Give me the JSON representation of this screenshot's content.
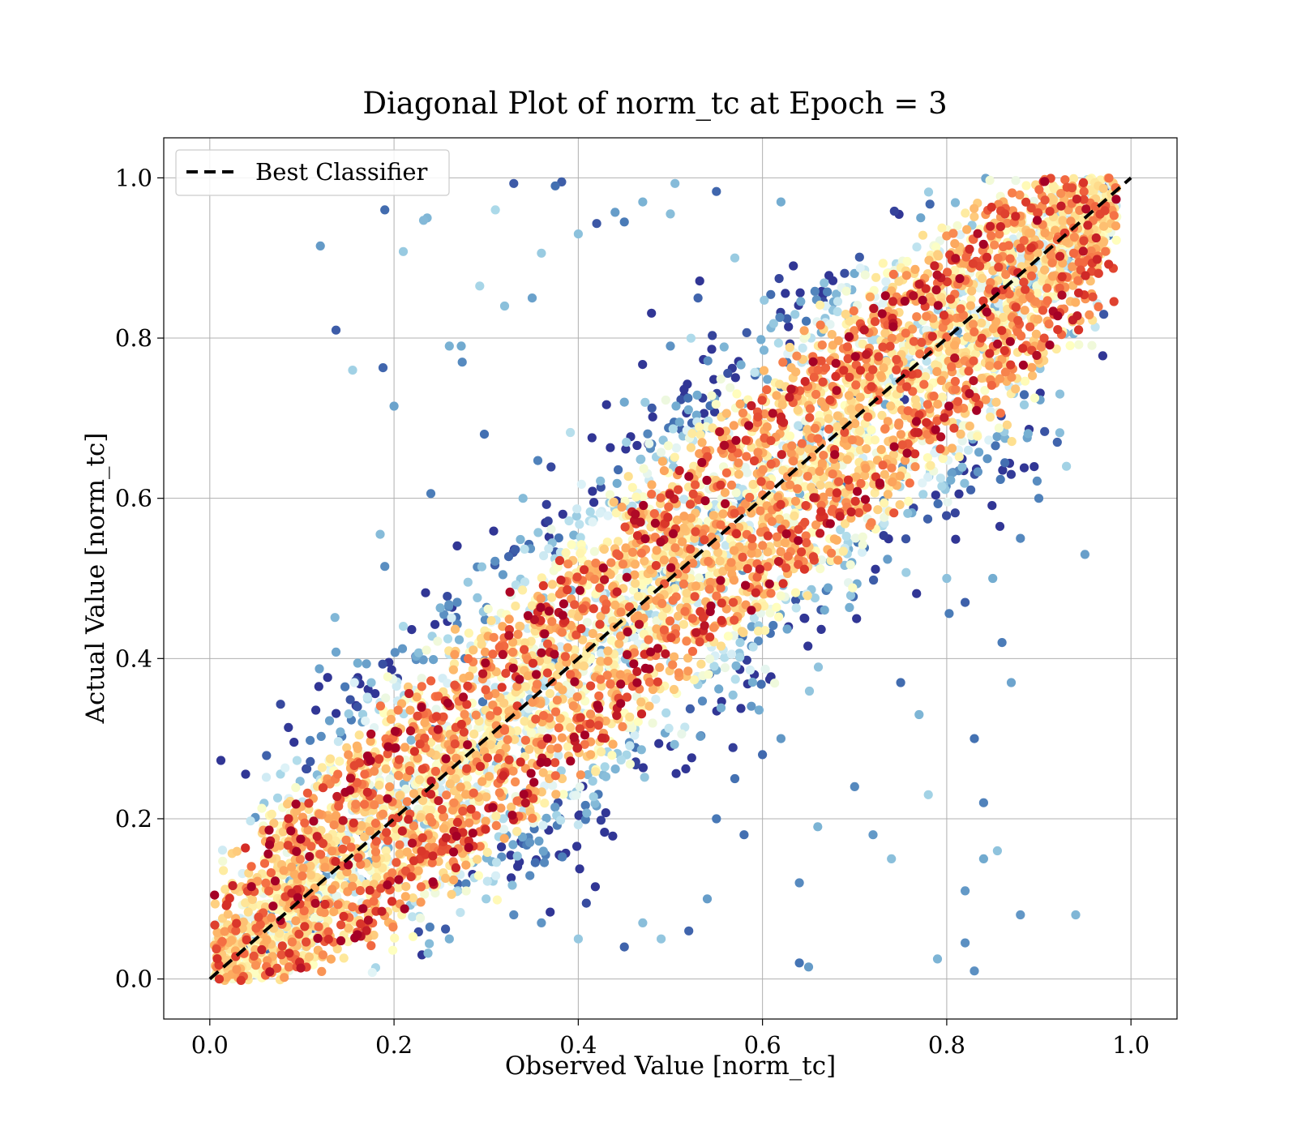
{
  "chart_data": {
    "type": "scatter",
    "title": "Diagonal Plot of norm_tc at Epoch = 3",
    "xlabel": "Observed Value [norm_tc]",
    "ylabel": "Actual Value [norm_tc]",
    "xlim": [
      -0.05,
      1.05
    ],
    "ylim": [
      -0.05,
      1.05
    ],
    "xticks": [
      "0.0",
      "0.2",
      "0.4",
      "0.6",
      "0.8",
      "1.0"
    ],
    "yticks": [
      "0.0",
      "0.2",
      "0.4",
      "0.6",
      "0.8",
      "1.0"
    ],
    "tick_values": [
      0.0,
      0.2,
      0.4,
      0.6,
      0.8,
      1.0
    ],
    "grid": true,
    "legend": {
      "placement": "top-left",
      "entries": [
        "Best Classifier"
      ]
    },
    "reference_line": {
      "name": "Best Classifier",
      "style": "dashed",
      "color": "#000000",
      "x": [
        0.0,
        1.0
      ],
      "y": [
        0.0,
        1.0
      ]
    },
    "colormap": [
      "#313695",
      "#4575b4",
      "#74add1",
      "#abd9e9",
      "#e0f3f8",
      "#ffffbf",
      "#fee090",
      "#fdae61",
      "#f46d43",
      "#d73027",
      "#a50026"
    ],
    "point_count_estimate": 25000,
    "points": [
      [
        0.12,
        0.915
      ],
      [
        0.137,
        0.81
      ],
      [
        0.19,
        0.96
      ],
      [
        0.155,
        0.76
      ],
      [
        0.188,
        0.763
      ],
      [
        0.2,
        0.715
      ],
      [
        0.232,
        0.947
      ],
      [
        0.236,
        0.95
      ],
      [
        0.21,
        0.908
      ],
      [
        0.274,
        0.77
      ],
      [
        0.26,
        0.79
      ],
      [
        0.273,
        0.79
      ],
      [
        0.293,
        0.865
      ],
      [
        0.31,
        0.96
      ],
      [
        0.33,
        0.993
      ],
      [
        0.375,
        0.99
      ],
      [
        0.382,
        0.995
      ],
      [
        0.36,
        0.906
      ],
      [
        0.4,
        0.93
      ],
      [
        0.42,
        0.943
      ],
      [
        0.44,
        0.957
      ],
      [
        0.47,
        0.97
      ],
      [
        0.505,
        0.993
      ],
      [
        0.55,
        0.983
      ],
      [
        0.5,
        0.955
      ],
      [
        0.45,
        0.945
      ],
      [
        0.32,
        0.84
      ],
      [
        0.35,
        0.85
      ],
      [
        0.277,
        0.4
      ],
      [
        0.298,
        0.68
      ],
      [
        0.24,
        0.606
      ],
      [
        0.185,
        0.555
      ],
      [
        0.19,
        0.515
      ],
      [
        0.137,
        0.408
      ],
      [
        0.34,
        0.6
      ],
      [
        0.45,
        0.72
      ],
      [
        0.5,
        0.79
      ],
      [
        0.53,
        0.85
      ],
      [
        0.57,
        0.9
      ],
      [
        0.62,
        0.97
      ],
      [
        0.75,
        0.37
      ],
      [
        0.77,
        0.33
      ],
      [
        0.83,
        0.3
      ],
      [
        0.84,
        0.22
      ],
      [
        0.78,
        0.23
      ],
      [
        0.82,
        0.11
      ],
      [
        0.855,
        0.16
      ],
      [
        0.84,
        0.15
      ],
      [
        0.88,
        0.08
      ],
      [
        0.94,
        0.08
      ],
      [
        0.82,
        0.045
      ],
      [
        0.83,
        0.01
      ],
      [
        0.79,
        0.025
      ],
      [
        0.65,
        0.015
      ],
      [
        0.64,
        0.02
      ],
      [
        0.64,
        0.12
      ],
      [
        0.66,
        0.19
      ],
      [
        0.7,
        0.24
      ],
      [
        0.72,
        0.18
      ],
      [
        0.74,
        0.15
      ],
      [
        0.88,
        0.55
      ],
      [
        0.9,
        0.6
      ],
      [
        0.93,
        0.64
      ],
      [
        0.95,
        0.53
      ],
      [
        0.92,
        0.67
      ],
      [
        0.85,
        0.5
      ],
      [
        0.86,
        0.42
      ],
      [
        0.87,
        0.37
      ],
      [
        0.82,
        0.47
      ],
      [
        0.8,
        0.5
      ],
      [
        0.57,
        0.25
      ],
      [
        0.6,
        0.28
      ],
      [
        0.62,
        0.3
      ],
      [
        0.55,
        0.2
      ],
      [
        0.58,
        0.18
      ],
      [
        0.49,
        0.05
      ],
      [
        0.52,
        0.06
      ],
      [
        0.54,
        0.1
      ],
      [
        0.47,
        0.07
      ],
      [
        0.45,
        0.04
      ],
      [
        0.33,
        0.08
      ],
      [
        0.36,
        0.07
      ],
      [
        0.26,
        0.05
      ],
      [
        0.3,
        0.1
      ],
      [
        0.4,
        0.05
      ]
    ]
  }
}
